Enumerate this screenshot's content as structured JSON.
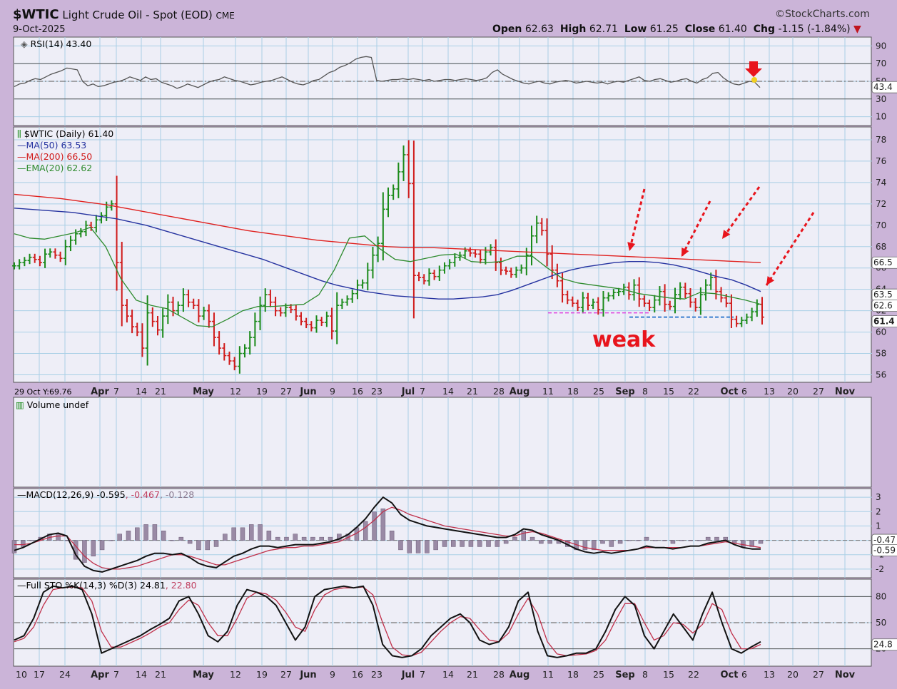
{
  "header": {
    "symbol": "$WTIC",
    "name": "Light Crude Oil - Spot (EOD)",
    "exchange": "CME",
    "date": "9-Oct-2025",
    "brand": "©StockCharts.com",
    "open_label": "Open",
    "open": "62.63",
    "high_label": "High",
    "high": "62.71",
    "low_label": "Low",
    "low": "61.25",
    "close_label": "Close",
    "close": "61.40",
    "chg_label": "Chg",
    "chg": "-1.15 (-1.84%)"
  },
  "colors": {
    "background": "#cbb4d8",
    "plot_bg": "#eeeef7",
    "up": "#1a8a1a",
    "down": "#d01a1a",
    "ma50": "#2633a0",
    "ma200": "#e0201e",
    "ema20": "#2e8b2e",
    "annotation": "#e8141c"
  },
  "chart_data": {
    "type": "line",
    "x_labels": [
      "Apr",
      "7",
      "14",
      "21",
      "May",
      "12",
      "19",
      "27",
      "Jun",
      "9",
      "16",
      "23",
      "Jul",
      "7",
      "14",
      "21",
      "28",
      "Aug",
      "11",
      "18",
      "25",
      "Sep",
      "8",
      "15",
      "22",
      "Oct",
      "6",
      "13",
      "20",
      "27",
      "Nov"
    ],
    "x_labels_bottom_extra": [
      "10",
      "17",
      "24"
    ],
    "hover_readout": "29 Oct Y:69.76",
    "rsi": {
      "legend": "RSI(14) 43.40",
      "last": "43.4",
      "ticks": [
        "90",
        "70",
        "50",
        "30",
        "10"
      ],
      "ylim": [
        0,
        100
      ],
      "values": [
        44,
        47,
        48,
        51,
        53,
        52,
        55,
        58,
        60,
        62,
        65,
        64,
        63,
        50,
        45,
        47,
        44,
        45,
        47,
        49,
        50,
        52,
        55,
        53,
        51,
        55,
        52,
        53,
        49,
        47,
        45,
        42,
        44,
        47,
        45,
        43,
        46,
        49,
        51,
        52,
        55,
        53,
        51,
        50,
        48,
        46,
        47,
        49,
        50,
        51,
        53,
        55,
        52,
        49,
        47,
        46,
        48,
        51,
        52,
        56,
        60,
        62,
        66,
        68,
        71,
        75,
        77,
        78,
        77,
        51,
        50,
        51,
        52,
        52,
        53,
        52,
        53,
        52,
        51,
        52,
        50,
        51,
        52,
        52,
        51,
        52,
        53,
        52,
        51,
        52,
        54,
        60,
        63,
        58,
        55,
        52,
        50,
        48,
        47,
        49,
        50,
        48,
        47,
        49,
        50,
        51,
        50,
        48,
        49,
        50,
        49,
        48,
        49,
        47,
        49,
        50,
        49,
        51,
        53,
        55,
        51,
        50,
        52,
        53,
        51,
        49,
        50,
        52,
        53,
        50,
        48,
        52,
        54,
        59,
        60,
        54,
        50,
        47,
        46,
        48,
        50,
        49,
        43
      ]
    },
    "price": {
      "legend": "$WTIC (Daily) 61.40",
      "ma50_legend": "MA(50) 63.53",
      "ma200_legend": "MA(200) 66.50",
      "ema20_legend": "EMA(20) 62.62",
      "ticks": [
        "78",
        "76",
        "74",
        "72",
        "70",
        "68",
        "66",
        "64",
        "62",
        "60",
        "58",
        "56"
      ],
      "ylim": [
        55.3,
        79.2
      ],
      "right_tags": [
        "66.5",
        "63.5",
        "62.6",
        "61.4"
      ],
      "close": [
        66.2,
        66.5,
        66.7,
        67.0,
        66.8,
        66.5,
        67.3,
        67.5,
        67.2,
        66.9,
        68.0,
        68.6,
        69.2,
        69.4,
        70.0,
        69.8,
        70.5,
        70.9,
        71.7,
        72.0,
        66.5,
        62.5,
        61.5,
        60.5,
        60.0,
        58.5,
        61.8,
        61.0,
        60.2,
        61.5,
        62.8,
        62.0,
        62.5,
        63.5,
        62.8,
        62.5,
        61.5,
        62.0,
        61.0,
        59.5,
        58.5,
        57.8,
        57.3,
        56.8,
        58.0,
        58.5,
        59.5,
        61.0,
        62.5,
        63.5,
        62.8,
        62.0,
        61.8,
        62.3,
        62.1,
        61.5,
        61.0,
        60.7,
        60.4,
        61.1,
        60.9,
        61.5,
        60.1,
        62.5,
        62.8,
        63.1,
        63.6,
        64.4,
        64.6,
        65.8,
        67.2,
        68.3,
        71.5,
        72.8,
        73.4,
        75.0,
        76.6,
        73.9,
        65.3,
        65.1,
        64.8,
        65.5,
        65.2,
        65.8,
        66.2,
        66.5,
        67.0,
        67.2,
        67.6,
        67.4,
        67.3,
        66.8,
        67.5,
        67.9,
        66.5,
        65.8,
        65.7,
        65.4,
        65.8,
        66.0,
        67.2,
        69.0,
        70.2,
        69.5,
        67.3,
        65.8,
        64.8,
        63.5,
        63.0,
        62.7,
        62.3,
        63.2,
        62.5,
        62.8,
        62.1,
        63.2,
        63.4,
        63.7,
        63.8,
        64.2,
        63.5,
        64.4,
        63.1,
        62.7,
        62.3,
        63.0,
        63.8,
        62.6,
        62.4,
        63.5,
        64.2,
        63.6,
        62.8,
        62.3,
        63.5,
        64.4,
        65.1,
        63.8,
        63.2,
        62.7,
        61.2,
        60.8,
        61.1,
        61.4,
        61.9,
        62.6,
        61.4
      ],
      "ma50": [
        71.6,
        71.5,
        71.4,
        71.3,
        71.2,
        71.0,
        70.8,
        70.6,
        70.3,
        70.0,
        69.6,
        69.2,
        68.8,
        68.4,
        68.0,
        67.6,
        67.2,
        66.8,
        66.3,
        65.8,
        65.3,
        64.8,
        64.4,
        64.1,
        63.8,
        63.6,
        63.4,
        63.3,
        63.2,
        63.1,
        63.1,
        63.2,
        63.3,
        63.5,
        63.9,
        64.4,
        64.9,
        65.4,
        65.8,
        66.1,
        66.3,
        66.5,
        66.6,
        66.6,
        66.5,
        66.3,
        66.0,
        65.6,
        65.2,
        64.9,
        64.4,
        63.8
      ],
      "ma200": [
        72.9,
        72.7,
        72.5,
        72.2,
        71.9,
        71.5,
        71.1,
        70.7,
        70.3,
        69.9,
        69.5,
        69.2,
        68.9,
        68.6,
        68.4,
        68.2,
        68.0,
        67.9,
        67.9,
        67.8,
        67.7,
        67.6,
        67.5,
        67.4,
        67.3,
        67.2,
        67.1,
        67.0,
        66.9,
        66.8,
        66.7,
        66.6,
        66.5
      ],
      "ema20": [
        69.2,
        68.8,
        68.7,
        69.0,
        69.3,
        69.8,
        68.0,
        65.0,
        63.0,
        62.5,
        62.2,
        61.4,
        60.6,
        60.5,
        61.2,
        62.0,
        62.4,
        62.4,
        62.5,
        62.6,
        63.5,
        65.8,
        68.8,
        69.0,
        67.8,
        66.8,
        66.6,
        66.9,
        67.2,
        67.3,
        66.6,
        66.5,
        66.6,
        67.1,
        67.1,
        66.0,
        65.0,
        64.6,
        64.4,
        64.2,
        64.0,
        63.6,
        63.4,
        63.2,
        63.1,
        63.7,
        63.6,
        63.3,
        63.0,
        62.6
      ],
      "support_levels": [
        61.8,
        61.4
      ],
      "annotation": "weak"
    },
    "volume": {
      "legend": "Volume undef"
    },
    "macd": {
      "legend_a": "MACD(12,26,9) -0.595",
      "legend_b": ", -0.467",
      "legend_c": ", -0.128",
      "ticks": [
        "3",
        "2",
        "1",
        "0",
        "-1",
        "-2"
      ],
      "ylim": [
        -2.6,
        3.6
      ],
      "right_tags": [
        "-0.47",
        "-0.59"
      ],
      "macd": [
        -0.7,
        -0.5,
        -0.2,
        0.1,
        0.4,
        0.5,
        0.3,
        -1.0,
        -1.8,
        -2.1,
        -2.2,
        -2.0,
        -1.8,
        -1.6,
        -1.4,
        -1.1,
        -0.9,
        -0.9,
        -1.0,
        -0.9,
        -1.2,
        -1.6,
        -1.8,
        -1.9,
        -1.5,
        -1.1,
        -0.9,
        -0.6,
        -0.4,
        -0.4,
        -0.5,
        -0.4,
        -0.3,
        -0.3,
        -0.3,
        -0.2,
        -0.1,
        0.1,
        0.4,
        0.9,
        1.5,
        2.3,
        3.0,
        2.6,
        1.8,
        1.4,
        1.2,
        1.0,
        0.9,
        0.8,
        0.7,
        0.6,
        0.5,
        0.4,
        0.3,
        0.2,
        0.2,
        0.4,
        0.8,
        0.7,
        0.4,
        0.2,
        0.0,
        -0.3,
        -0.6,
        -0.8,
        -0.9,
        -0.8,
        -0.9,
        -0.8,
        -0.7,
        -0.6,
        -0.4,
        -0.5,
        -0.5,
        -0.6,
        -0.5,
        -0.4,
        -0.4,
        -0.2,
        -0.1,
        0.0,
        -0.3,
        -0.5,
        -0.6,
        -0.6
      ],
      "signal": [
        -0.3,
        -0.3,
        -0.2,
        0.0,
        0.2,
        0.3,
        0.3,
        -0.4,
        -1.1,
        -1.6,
        -1.9,
        -2.0,
        -2.0,
        -1.9,
        -1.8,
        -1.6,
        -1.4,
        -1.2,
        -1.0,
        -1.0,
        -1.1,
        -1.3,
        -1.5,
        -1.7,
        -1.7,
        -1.5,
        -1.3,
        -1.1,
        -0.9,
        -0.7,
        -0.6,
        -0.5,
        -0.5,
        -0.4,
        -0.4,
        -0.3,
        -0.2,
        -0.1,
        0.2,
        0.5,
        0.9,
        1.4,
        2.0,
        2.3,
        2.1,
        1.8,
        1.6,
        1.4,
        1.2,
        1.0,
        0.9,
        0.8,
        0.7,
        0.6,
        0.5,
        0.4,
        0.3,
        0.3,
        0.5,
        0.6,
        0.5,
        0.3,
        0.1,
        -0.1,
        -0.3,
        -0.5,
        -0.6,
        -0.7,
        -0.7,
        -0.7,
        -0.7,
        -0.6,
        -0.5,
        -0.5,
        -0.5,
        -0.5,
        -0.5,
        -0.4,
        -0.4,
        -0.3,
        -0.2,
        -0.1,
        -0.2,
        -0.3,
        -0.4,
        -0.5
      ]
    },
    "stoch": {
      "legend_a": "Full STO %K(14,3) %D(3) 24.81",
      "legend_b": ", 22.80",
      "ticks": [
        "80",
        "50",
        "20"
      ],
      "ylim": [
        0,
        100
      ],
      "right_tag": "24.8",
      "k": [
        30,
        35,
        55,
        85,
        92,
        90,
        92,
        88,
        60,
        15,
        20,
        25,
        30,
        35,
        42,
        48,
        55,
        75,
        80,
        60,
        35,
        28,
        40,
        70,
        88,
        85,
        80,
        70,
        50,
        30,
        45,
        80,
        88,
        90,
        92,
        90,
        92,
        70,
        25,
        12,
        10,
        12,
        20,
        35,
        45,
        55,
        60,
        50,
        30,
        25,
        28,
        45,
        75,
        85,
        40,
        12,
        10,
        12,
        15,
        15,
        20,
        40,
        65,
        80,
        70,
        35,
        20,
        40,
        60,
        45,
        30,
        60,
        85,
        50,
        20,
        15,
        22,
        28
      ],
      "d": [
        28,
        32,
        45,
        70,
        88,
        90,
        91,
        90,
        75,
        40,
        22,
        22,
        27,
        32,
        38,
        45,
        50,
        65,
        76,
        70,
        50,
        35,
        35,
        55,
        78,
        85,
        83,
        76,
        62,
        45,
        40,
        65,
        82,
        88,
        90,
        90,
        91,
        82,
        50,
        22,
        13,
        12,
        16,
        28,
        40,
        50,
        57,
        55,
        42,
        30,
        28,
        38,
        60,
        78,
        60,
        28,
        14,
        12,
        13,
        14,
        18,
        30,
        52,
        72,
        72,
        50,
        30,
        35,
        50,
        48,
        38,
        48,
        72,
        65,
        38,
        20,
        20,
        25
      ]
    },
    "bottom_x_labels": [
      "10",
      "17",
      "24",
      "Apr",
      "7",
      "14",
      "21",
      "May",
      "12",
      "19",
      "27",
      "Jun",
      "9",
      "16",
      "23",
      "Jul",
      "7",
      "14",
      "21",
      "28",
      "Aug",
      "11",
      "18",
      "25",
      "Sep",
      "8",
      "15",
      "22",
      "Oct",
      "6",
      "13",
      "20",
      "27",
      "Nov"
    ]
  }
}
